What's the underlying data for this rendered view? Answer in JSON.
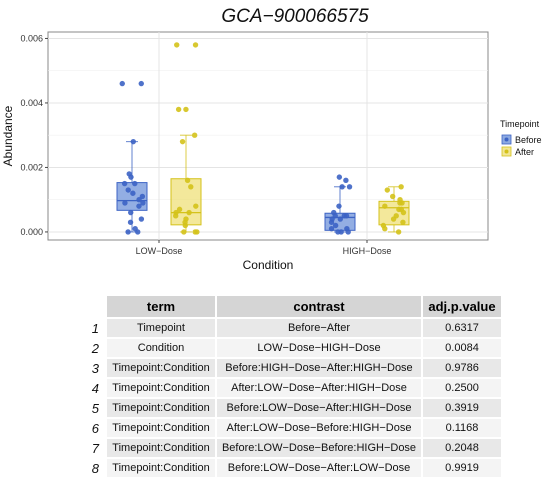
{
  "chart_data": {
    "type": "box",
    "title": "GCA−900066575",
    "xlabel": "Condition",
    "ylabel": "Abundance",
    "categories": [
      "LOW−Dose",
      "HIGH−Dose"
    ],
    "ylim": [
      -0.00025,
      0.0062
    ],
    "y_ticks": [
      0.0,
      0.002,
      0.004,
      0.006
    ],
    "y_tick_labels": [
      "0.000",
      "0.002",
      "0.004",
      "0.006"
    ],
    "grid": true,
    "legend": {
      "title": "Timepoint",
      "position": "right",
      "entries": [
        "Before",
        "After"
      ]
    },
    "series": [
      {
        "name": "Before",
        "color": "#3c63c4",
        "fill": "#6f93da",
        "boxes": [
          {
            "category": "LOW−Dose",
            "q1": 0.00067,
            "median": 0.00097,
            "q3": 0.00153,
            "whisker_low": 0.0,
            "whisker_high": 0.0028,
            "points": [
              0.0046,
              0.0046,
              0.0028,
              0.0018,
              0.0017,
              0.0015,
              0.0015,
              0.0013,
              0.0012,
              0.0011,
              0.001,
              0.0009,
              0.0009,
              0.0008,
              0.0006,
              0.0004,
              0.0003,
              0.0001,
              0.0,
              0.0
            ]
          },
          {
            "category": "HIGH−Dose",
            "q1": 5e-05,
            "median": 0.00045,
            "q3": 0.00058,
            "whisker_low": 0.0,
            "whisker_high": 0.0014,
            "points": [
              0.0017,
              0.0016,
              0.0014,
              0.0014,
              0.0008,
              0.0006,
              0.0005,
              0.0005,
              0.0005,
              0.0004,
              0.0004,
              0.0003,
              0.0002,
              0.0001,
              0.0001,
              0.0,
              0.0,
              0.0
            ]
          }
        ]
      },
      {
        "name": "After",
        "color": "#d4c21a",
        "fill": "#efe07a",
        "boxes": [
          {
            "category": "LOW−Dose",
            "q1": 0.00022,
            "median": 0.0006,
            "q3": 0.00165,
            "whisker_low": 0.0,
            "whisker_high": 0.003,
            "points": [
              0.0058,
              0.0058,
              0.0038,
              0.0038,
              0.003,
              0.0028,
              0.0016,
              0.0014,
              0.0008,
              0.0007,
              0.0006,
              0.0006,
              0.0005,
              0.0004,
              0.0003,
              0.0002,
              0.0,
              0.0,
              0.0
            ]
          },
          {
            "category": "HIGH−Dose",
            "q1": 0.00022,
            "median": 0.00075,
            "q3": 0.00095,
            "whisker_low": 0.0,
            "whisker_high": 0.0014,
            "points": [
              0.0014,
              0.0013,
              0.0011,
              0.001,
              0.0009,
              0.0009,
              0.0008,
              0.0007,
              0.0007,
              0.0006,
              0.0005,
              0.0004,
              0.0003,
              0.0002,
              0.0001,
              0.0
            ]
          }
        ]
      }
    ]
  },
  "table": {
    "headers": {
      "term": "term",
      "contrast": "contrast",
      "p": "adj.p.value"
    },
    "rows": [
      {
        "n": "1",
        "term": "Timepoint",
        "contrast": "Before−After",
        "p": "0.6317"
      },
      {
        "n": "2",
        "term": "Condition",
        "contrast": "LOW−Dose−HIGH−Dose",
        "p": "0.0084"
      },
      {
        "n": "3",
        "term": "Timepoint:Condition",
        "contrast": "Before:HIGH−Dose−After:HIGH−Dose",
        "p": "0.9786"
      },
      {
        "n": "4",
        "term": "Timepoint:Condition",
        "contrast": "After:LOW−Dose−After:HIGH−Dose",
        "p": "0.2500"
      },
      {
        "n": "5",
        "term": "Timepoint:Condition",
        "contrast": "Before:LOW−Dose−After:HIGH−Dose",
        "p": "0.3919"
      },
      {
        "n": "6",
        "term": "Timepoint:Condition",
        "contrast": "After:LOW−Dose−Before:HIGH−Dose",
        "p": "0.1168"
      },
      {
        "n": "7",
        "term": "Timepoint:Condition",
        "contrast": "Before:LOW−Dose−Before:HIGH−Dose",
        "p": "0.2048"
      },
      {
        "n": "8",
        "term": "Timepoint:Condition",
        "contrast": "Before:LOW−Dose−After:LOW−Dose",
        "p": "0.9919"
      }
    ]
  }
}
